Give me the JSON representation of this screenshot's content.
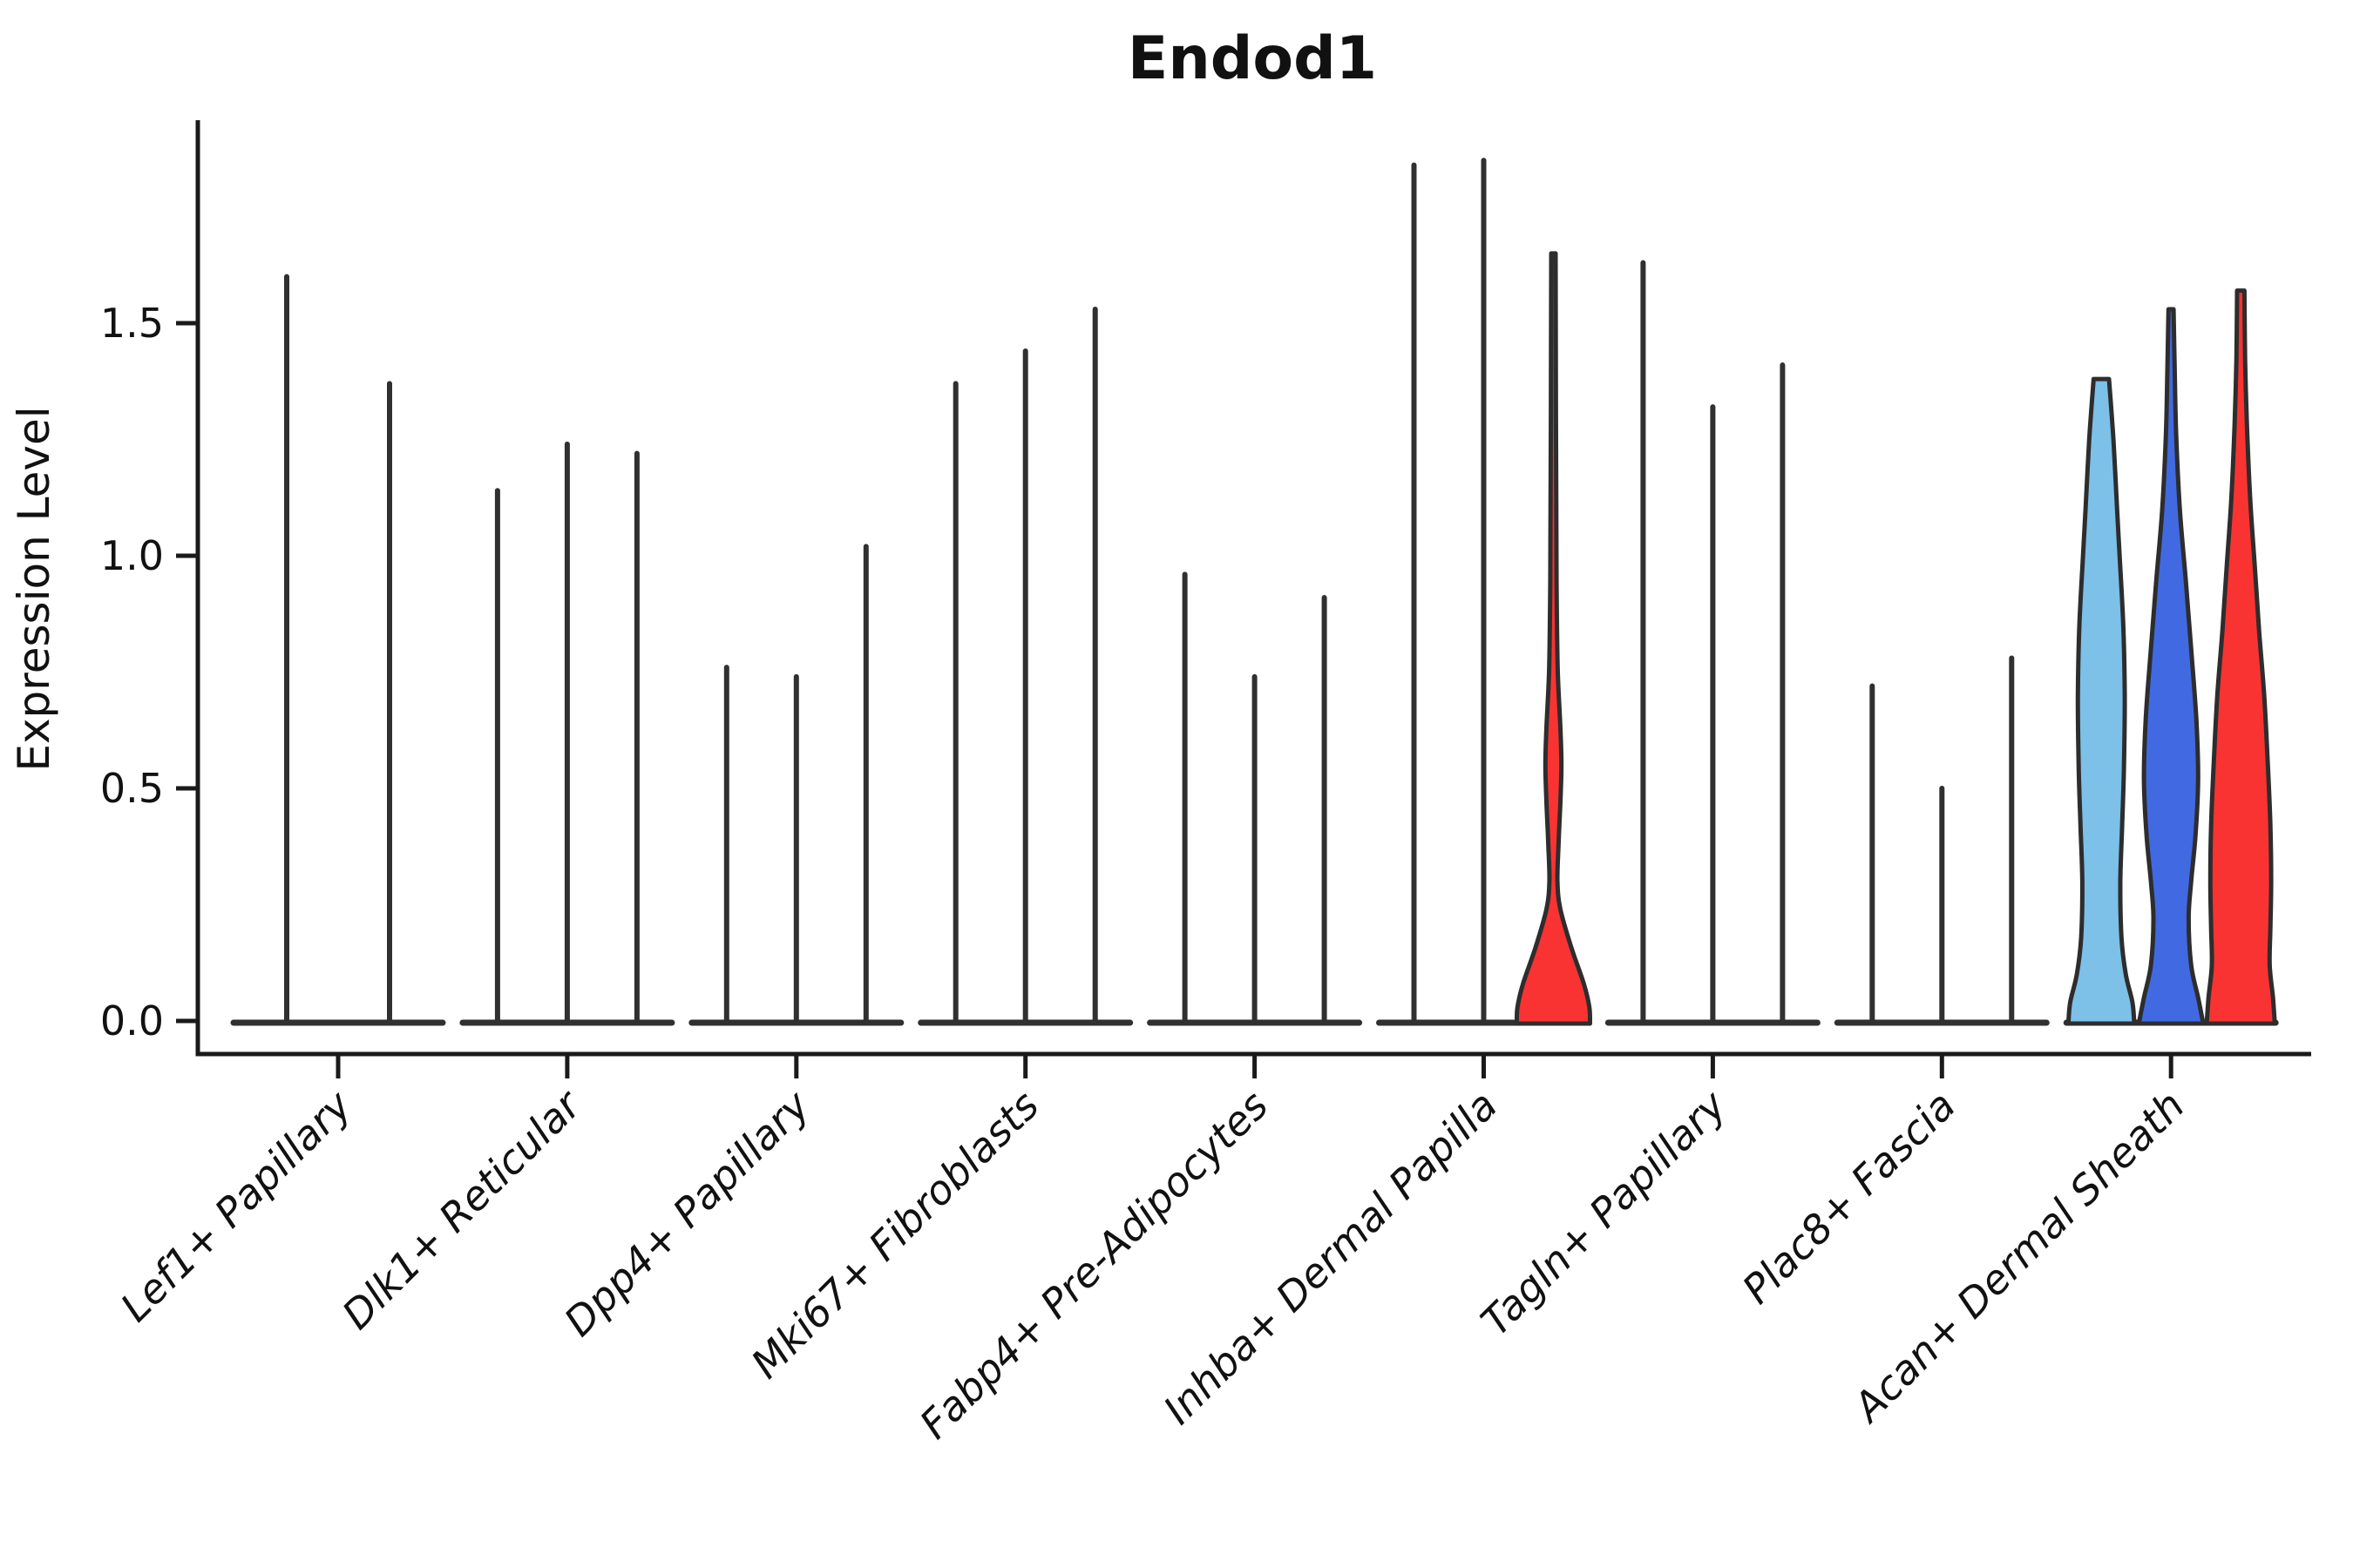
{
  "title": "Endod1",
  "axis": {
    "ylabel": "Expression Level",
    "ytick_labels": [
      "0.0",
      "0.5",
      "1.0",
      "1.5"
    ]
  },
  "chart_data": {
    "type": "violin",
    "title": "Endod1",
    "xlabel": "",
    "ylabel": "Expression Level",
    "ylim": [
      -0.07,
      1.94
    ],
    "yticks": [
      0.0,
      0.5,
      1.0,
      1.5
    ],
    "grid": false,
    "legend": "none",
    "colors": {
      "line_violin": "#303030",
      "outline": "#2d2d2d",
      "skyblue": "#7DC0E8",
      "blue": "#4169E1",
      "red": "#F93332"
    },
    "categories": [
      "Lef1+ Papillary",
      "Dlk1+ Reticular",
      "Dpp4+ Papillary",
      "Mki67+ Fibroblasts",
      "Fabp4+ Pre-Adipocytes",
      "Inhba+ Dermal Papilla",
      "Tagln+ Papillary",
      "Plac8+ Fascia",
      "Acan+ Dermal Sheath"
    ],
    "groups": [
      {
        "category": "Lef1+ Papillary",
        "violins": [
          {
            "style": "line",
            "max": 1.6
          },
          {
            "style": "line",
            "max": 1.37
          }
        ]
      },
      {
        "category": "Dlk1+ Reticular",
        "violins": [
          {
            "style": "line",
            "max": 1.14
          },
          {
            "style": "line",
            "max": 1.24
          },
          {
            "style": "line",
            "max": 1.22
          }
        ]
      },
      {
        "category": "Dpp4+ Papillary",
        "violins": [
          {
            "style": "line",
            "max": 0.76
          },
          {
            "style": "line",
            "max": 0.74
          },
          {
            "style": "line",
            "max": 1.02
          }
        ]
      },
      {
        "category": "Mki67+ Fibroblasts",
        "violins": [
          {
            "style": "line",
            "max": 1.37
          },
          {
            "style": "line",
            "max": 1.44
          },
          {
            "style": "line",
            "max": 1.53
          }
        ]
      },
      {
        "category": "Fabp4+ Pre-Adipocytes",
        "violins": [
          {
            "style": "line",
            "max": 0.96
          },
          {
            "style": "line",
            "max": 0.74
          },
          {
            "style": "line",
            "max": 0.91
          }
        ]
      },
      {
        "category": "Inhba+ Dermal Papilla",
        "violins": [
          {
            "style": "line",
            "max": 1.84
          },
          {
            "style": "line",
            "max": 1.85
          },
          {
            "style": "filled",
            "color": "#F93332",
            "max": 1.65,
            "profile": [
              [
                1.65,
                0.06
              ],
              [
                1.3,
                0.07
              ],
              [
                1.05,
                0.08
              ],
              [
                0.9,
                0.09
              ],
              [
                0.75,
                0.12
              ],
              [
                0.63,
                0.19
              ],
              [
                0.55,
                0.22
              ],
              [
                0.47,
                0.19
              ],
              [
                0.38,
                0.14
              ],
              [
                0.3,
                0.11
              ],
              [
                0.24,
                0.19
              ],
              [
                0.16,
                0.48
              ],
              [
                0.08,
                0.83
              ],
              [
                0.03,
                0.98
              ],
              [
                0.0,
                1.0
              ]
            ]
          }
        ]
      },
      {
        "category": "Tagln+ Papillary",
        "violins": [
          {
            "style": "line",
            "max": 1.63
          },
          {
            "style": "line",
            "max": 1.32
          },
          {
            "style": "line",
            "max": 1.41
          }
        ]
      },
      {
        "category": "Plac8+ Fascia",
        "violins": [
          {
            "style": "line",
            "max": 0.72
          },
          {
            "style": "line",
            "max": 0.5
          },
          {
            "style": "line",
            "max": 0.78
          }
        ]
      },
      {
        "category": "Acan+ Dermal Sheath",
        "violins": [
          {
            "style": "filled",
            "color": "#7DC0E8",
            "max": 1.38,
            "profile": [
              [
                1.38,
                0.21
              ],
              [
                1.25,
                0.33
              ],
              [
                1.1,
                0.43
              ],
              [
                1.0,
                0.5
              ],
              [
                0.85,
                0.6
              ],
              [
                0.7,
                0.64
              ],
              [
                0.55,
                0.62
              ],
              [
                0.42,
                0.57
              ],
              [
                0.3,
                0.52
              ],
              [
                0.18,
                0.55
              ],
              [
                0.1,
                0.67
              ],
              [
                0.04,
                0.85
              ],
              [
                0.0,
                0.9
              ]
            ]
          },
          {
            "style": "filled",
            "color": "#4169E1",
            "max": 1.53,
            "profile": [
              [
                1.53,
                0.07
              ],
              [
                1.4,
                0.1
              ],
              [
                1.26,
                0.14
              ],
              [
                1.1,
                0.24
              ],
              [
                0.95,
                0.4
              ],
              [
                0.8,
                0.55
              ],
              [
                0.65,
                0.69
              ],
              [
                0.52,
                0.74
              ],
              [
                0.4,
                0.67
              ],
              [
                0.3,
                0.55
              ],
              [
                0.22,
                0.48
              ],
              [
                0.12,
                0.55
              ],
              [
                0.05,
                0.74
              ],
              [
                0.0,
                0.88
              ]
            ]
          },
          {
            "style": "filled",
            "color": "#F93332",
            "max": 1.57,
            "profile": [
              [
                1.57,
                0.1
              ],
              [
                1.42,
                0.12
              ],
              [
                1.28,
                0.17
              ],
              [
                1.12,
                0.26
              ],
              [
                0.98,
                0.38
              ],
              [
                0.84,
                0.5
              ],
              [
                0.7,
                0.64
              ],
              [
                0.55,
                0.74
              ],
              [
                0.42,
                0.81
              ],
              [
                0.3,
                0.83
              ],
              [
                0.2,
                0.81
              ],
              [
                0.12,
                0.79
              ],
              [
                0.05,
                0.88
              ],
              [
                0.0,
                0.93
              ]
            ]
          }
        ]
      }
    ]
  }
}
